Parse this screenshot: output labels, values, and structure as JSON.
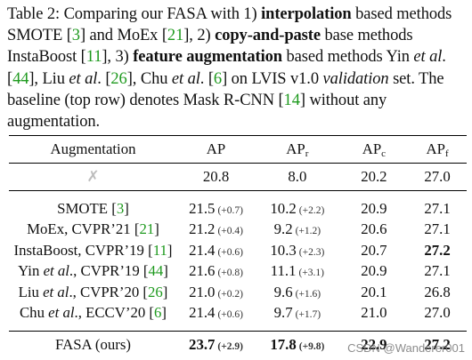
{
  "caption": {
    "label": "Table 2:",
    "p1": " Comparing our FASA with 1) ",
    "b1": "interpolation",
    "p2": " based methods SMOTE [",
    "c1": "3",
    "p3": "] and MoEx [",
    "c2": "21",
    "p4": "], 2) ",
    "b2": "copy-and-paste",
    "p5": " base methods InstaBoost [",
    "c3": "11",
    "p6": "], 3) ",
    "b3": "feature augmentation",
    "p7": " based methods Yin ",
    "i1": "et al",
    "p8": ". [",
    "c4": "44",
    "p9": "], Liu ",
    "i2": "et al",
    "p10": ". [",
    "c5": "26",
    "p11": "], Chu ",
    "i3": "et al",
    "p12": ". [",
    "c6": "6",
    "p13": "] on LVIS v1.0 ",
    "i4": "validation",
    "p14": " set. The baseline (top row) denotes Mask R-CNN [",
    "c7": "14",
    "p15": "] without any augmentation."
  },
  "table": {
    "headers": {
      "aug": "Augmentation",
      "ap": "AP",
      "apr_base": "AP",
      "apr_sub": "r",
      "apc_base": "AP",
      "apc_sub": "c",
      "apf_base": "AP",
      "apf_sub": "f"
    },
    "baseline": {
      "aug": "✗",
      "ap": "20.8",
      "apr": "8.0",
      "apc": "20.2",
      "apf": "27.0"
    },
    "rows": [
      {
        "name": "SMOTE [",
        "cite": "3",
        "name_end": "]",
        "ap": "21.5",
        "ap_d": "(+0.7)",
        "apr": "10.2",
        "apr_d": "(+2.2)",
        "apc": "20.9",
        "apf": "27.1"
      },
      {
        "name": "MoEx, CVPR’21 [",
        "cite": "21",
        "name_end": "]",
        "ap": "21.2",
        "ap_d": "(+0.4)",
        "apr": "9.2",
        "apr_d": "(+1.2)",
        "apc": "20.6",
        "apf": "27.1"
      },
      {
        "name": "InstaBoost, CVPR’19 [",
        "cite": "11",
        "name_end": "]",
        "ap": "21.4",
        "ap_d": "(+0.6)",
        "apr": "10.3",
        "apr_d": "(+2.3)",
        "apc": "20.7",
        "apf": "27.2"
      },
      {
        "name_a": "Yin ",
        "name_i": "et al",
        "name_b": "., CVPR’19 [",
        "cite": "44",
        "name_end": "]",
        "ap": "21.6",
        "ap_d": "(+0.8)",
        "apr": "11.1",
        "apr_d": "(+3.1)",
        "apc": "20.9",
        "apf": "27.1"
      },
      {
        "name_a": "Liu ",
        "name_i": "et al",
        "name_b": "., CVPR’20 [",
        "cite": "26",
        "name_end": "]",
        "ap": "21.0",
        "ap_d": "(+0.2)",
        "apr": "9.6",
        "apr_d": "(+1.6)",
        "apc": "20.1",
        "apf": "26.8"
      },
      {
        "name_a": "Chu ",
        "name_i": "et al",
        "name_b": "., ECCV’20 [",
        "cite": "6",
        "name_end": "]",
        "ap": "21.4",
        "ap_d": "(+0.6)",
        "apr": "9.7",
        "apr_d": "(+1.7)",
        "apc": "21.0",
        "apf": "27.0"
      }
    ],
    "fasa": {
      "aug": "FASA (ours)",
      "ap": "23.7",
      "ap_d": "(+2.9)",
      "apr": "17.8",
      "apr_d": "(+9.8)",
      "apc": "22.9",
      "apf": "27.2"
    }
  },
  "watermark": "CSDN @Wanderer001",
  "colors": {
    "citation": "#1f9a1f",
    "cross": "#bdbdbd"
  }
}
